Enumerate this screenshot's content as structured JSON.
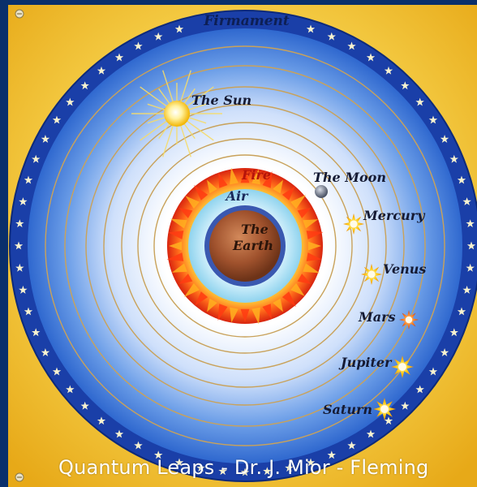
{
  "diagram": {
    "labels": {
      "firmament": "Firmament",
      "sun": "The Sun",
      "moon": "The Moon",
      "mercury": "Mercury",
      "venus": "Venus",
      "mars": "Mars",
      "jupiter": "Jupiter",
      "saturn": "Saturn",
      "fire": "Fire",
      "air": "Air",
      "earth_line1": "The",
      "earth_line2": "Earth"
    },
    "colors": {
      "background_gold": "#f2c23a",
      "border_blue": "#1a3fa8",
      "sphere_blue": "#3b78d8",
      "orbit_gold": "#c9a25a",
      "fire": "#e83a12",
      "air": "#a9e3f5",
      "earth": "#a0522d",
      "frame_dark_blue": "#0a2f6b"
    },
    "icons": [
      "sun-icon",
      "moon-icon",
      "star-icon",
      "planet-star-icon",
      "screw-icon"
    ]
  },
  "caption": {
    "text": "Quantum Leaps - Dr. J. Mior - Fleming"
  }
}
